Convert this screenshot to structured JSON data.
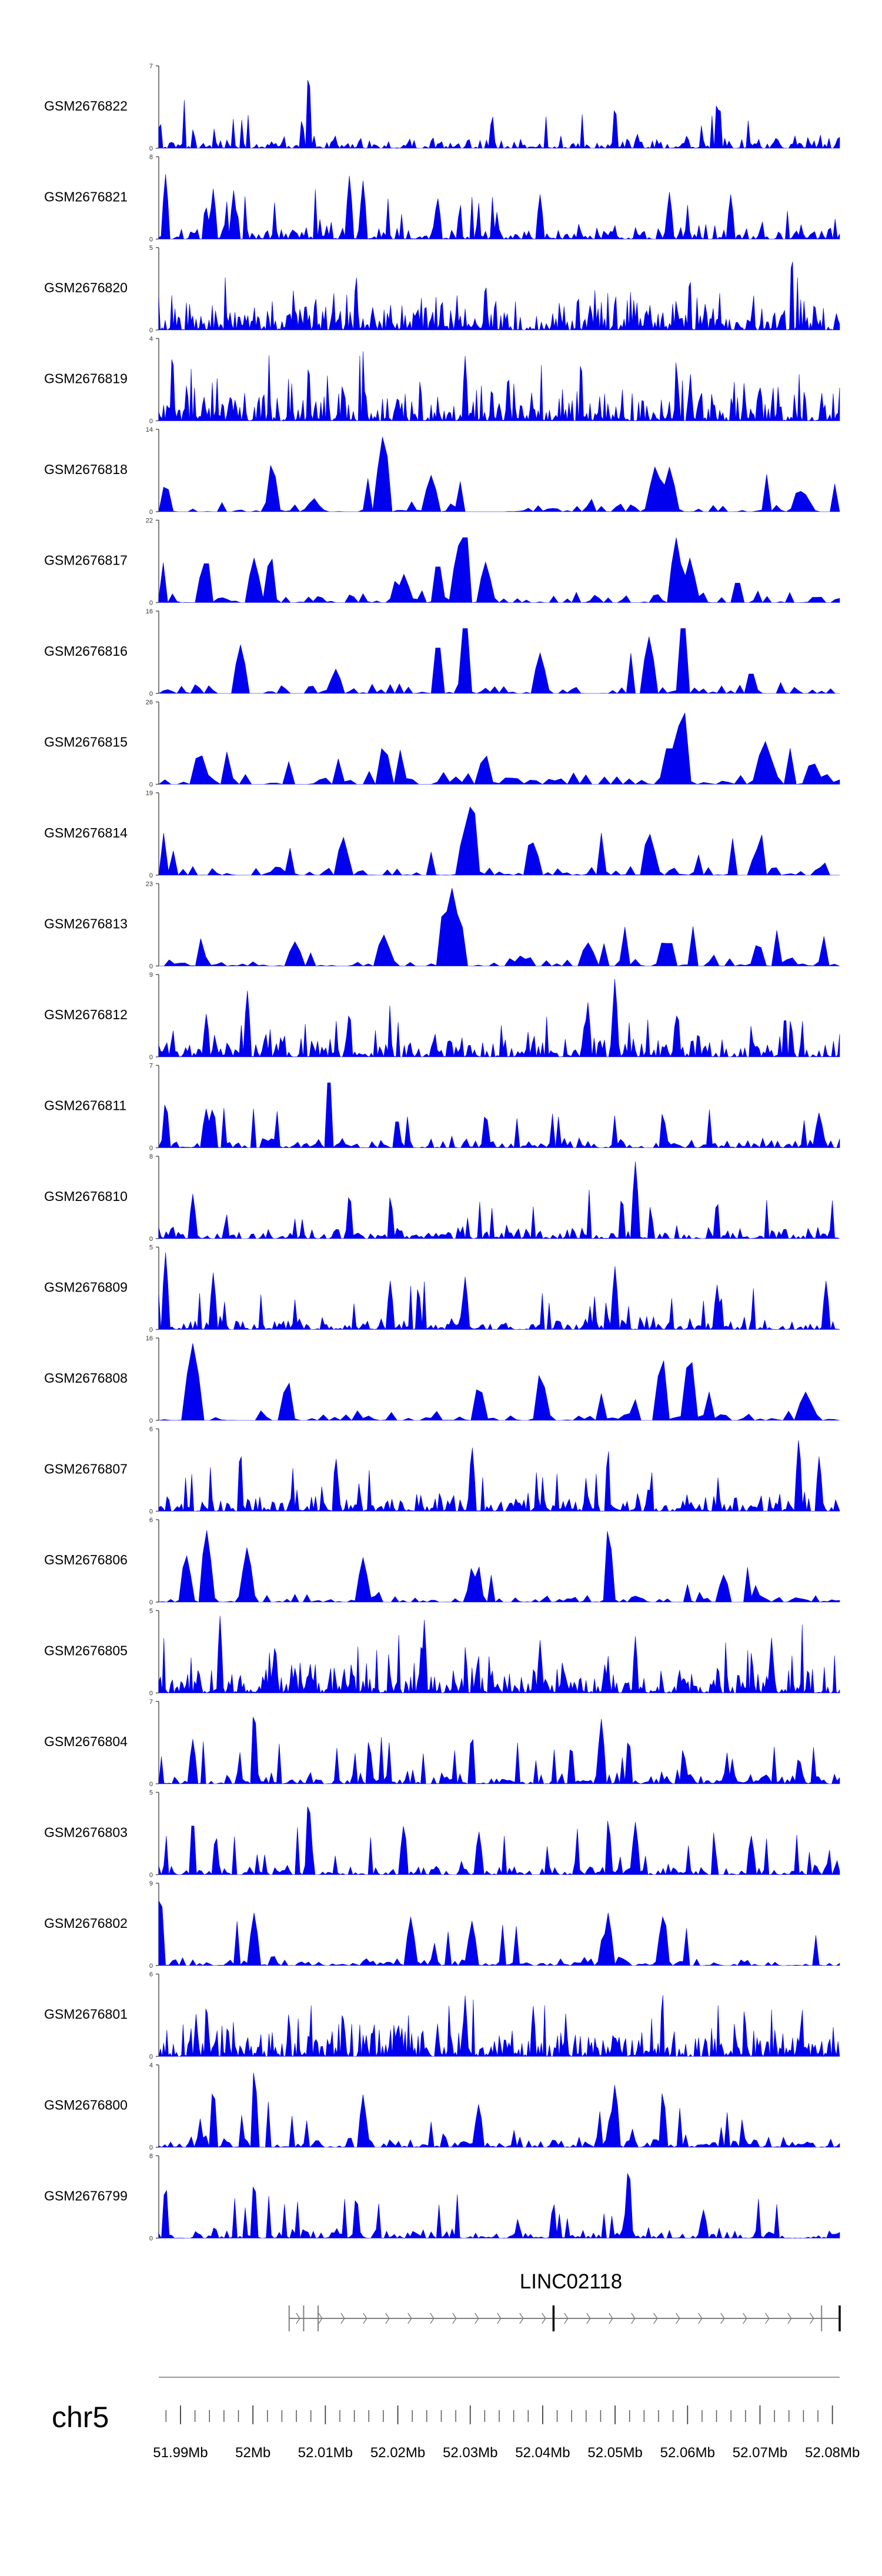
{
  "tracks": [
    {
      "label": "GSM2676822",
      "ymax": "7",
      "ymin": "0",
      "peaks": [
        [
          0.002,
          0.34
        ],
        [
          0.21,
          0.36
        ],
        [
          0.22,
          1.0
        ],
        [
          0.49,
          0.42
        ],
        [
          0.67,
          0.55
        ],
        [
          0.82,
          0.62
        ]
      ],
      "seed": 22,
      "density": 320,
      "base": 0.12,
      "gaps": 0.05
    },
    {
      "label": "GSM2676821",
      "ymax": "8",
      "ymin": "0",
      "peaks": [
        [
          0.01,
          0.8
        ],
        [
          0.08,
          0.62
        ],
        [
          0.11,
          0.6
        ],
        [
          0.28,
          0.78
        ],
        [
          0.3,
          0.72
        ],
        [
          0.41,
          0.5
        ],
        [
          0.56,
          0.55
        ],
        [
          0.75,
          0.58
        ],
        [
          0.84,
          0.55
        ]
      ],
      "seed": 21,
      "density": 300,
      "base": 0.15,
      "gaps": 0.08
    },
    {
      "label": "GSM2676820",
      "ymax": "5",
      "ymin": "0",
      "peaks": [
        [
          0.29,
          0.7
        ],
        [
          0.48,
          0.62
        ],
        [
          0.78,
          0.7
        ],
        [
          0.93,
          1.0
        ]
      ],
      "seed": 20,
      "density": 420,
      "base": 0.3,
      "gaps": 0.02
    },
    {
      "label": "GSM2676819",
      "ymax": "4",
      "ymin": "0",
      "peaks": [
        [
          0.02,
          0.9
        ],
        [
          0.22,
          0.75
        ],
        [
          0.45,
          0.8
        ],
        [
          0.62,
          0.8
        ],
        [
          0.76,
          0.78
        ]
      ],
      "seed": 19,
      "density": 420,
      "base": 0.35,
      "gaps": 0.02
    },
    {
      "label": "GSM2676818",
      "ymax": "14",
      "ymin": "0",
      "peaks": [
        [
          0.01,
          0.36
        ],
        [
          0.33,
          1.0
        ],
        [
          0.4,
          0.45
        ],
        [
          0.73,
          0.6
        ],
        [
          0.75,
          0.55
        ],
        [
          0.94,
          0.3
        ]
      ],
      "seed": 18,
      "density": 140,
      "base": 0.12,
      "gaps": 0.3
    },
    {
      "label": "GSM2676817",
      "ymax": "22",
      "ymin": "0",
      "peaks": [
        [
          0.07,
          0.6
        ],
        [
          0.14,
          0.55
        ],
        [
          0.36,
          0.35
        ],
        [
          0.41,
          0.55
        ],
        [
          0.44,
          0.7
        ],
        [
          0.45,
          1.0
        ],
        [
          0.48,
          0.5
        ],
        [
          0.76,
          0.8
        ],
        [
          0.78,
          0.55
        ],
        [
          0.85,
          0.3
        ]
      ],
      "seed": 17,
      "density": 150,
      "base": 0.1,
      "gaps": 0.3
    },
    {
      "label": "GSM2676816",
      "ymax": "16",
      "ymin": "0",
      "peaks": [
        [
          0.12,
          0.6
        ],
        [
          0.26,
          0.3
        ],
        [
          0.41,
          0.7
        ],
        [
          0.45,
          1.0
        ],
        [
          0.56,
          0.5
        ],
        [
          0.72,
          0.7
        ],
        [
          0.77,
          1.0
        ],
        [
          0.87,
          0.3
        ]
      ],
      "seed": 16,
      "density": 150,
      "base": 0.12,
      "gaps": 0.3
    },
    {
      "label": "GSM2676815",
      "ymax": "26",
      "ymin": "0",
      "peaks": [
        [
          0.06,
          0.42
        ],
        [
          0.33,
          0.5
        ],
        [
          0.48,
          0.38
        ],
        [
          0.75,
          0.55
        ],
        [
          0.77,
          1.0
        ],
        [
          0.89,
          0.55
        ],
        [
          0.96,
          0.3
        ]
      ],
      "seed": 15,
      "density": 110,
      "base": 0.12,
      "gaps": 0.4
    },
    {
      "label": "GSM2676814",
      "ymax": "19",
      "ymin": "0",
      "peaks": [
        [
          0.27,
          0.45
        ],
        [
          0.45,
          0.6
        ],
        [
          0.46,
          1.0
        ],
        [
          0.55,
          0.4
        ],
        [
          0.72,
          0.55
        ],
        [
          0.88,
          0.35
        ]
      ],
      "seed": 14,
      "density": 140,
      "base": 0.12,
      "gaps": 0.25
    },
    {
      "label": "GSM2676813",
      "ymax": "23",
      "ymin": "0",
      "peaks": [
        [
          0.2,
          0.3
        ],
        [
          0.33,
          0.4
        ],
        [
          0.42,
          0.8
        ],
        [
          0.43,
          1.0
        ],
        [
          0.44,
          0.7
        ],
        [
          0.63,
          0.3
        ],
        [
          0.75,
          0.35
        ],
        [
          0.88,
          0.3
        ]
      ],
      "seed": 13,
      "density": 130,
      "base": 0.12,
      "gaps": 0.3
    },
    {
      "label": "GSM2676812",
      "ymax": "9",
      "ymin": "0",
      "peaks": [
        [
          0.07,
          0.55
        ],
        [
          0.13,
          0.85
        ],
        [
          0.28,
          0.6
        ],
        [
          0.63,
          0.7
        ],
        [
          0.67,
          1.0
        ],
        [
          0.76,
          0.55
        ]
      ],
      "seed": 12,
      "density": 330,
      "base": 0.22,
      "gaps": 0.04
    },
    {
      "label": "GSM2676811",
      "ymax": "7",
      "ymin": "0",
      "peaks": [
        [
          0.01,
          0.6
        ],
        [
          0.07,
          0.5
        ],
        [
          0.25,
          1.0
        ],
        [
          0.35,
          0.4
        ],
        [
          0.48,
          0.45
        ],
        [
          0.74,
          0.45
        ],
        [
          0.97,
          0.45
        ]
      ],
      "seed": 11,
      "density": 230,
      "base": 0.12,
      "gaps": 0.12
    },
    {
      "label": "GSM2676810",
      "ymax": "8",
      "ymin": "0",
      "peaks": [
        [
          0.05,
          0.55
        ],
        [
          0.28,
          0.6
        ],
        [
          0.34,
          0.55
        ],
        [
          0.68,
          0.55
        ],
        [
          0.7,
          0.95
        ],
        [
          0.82,
          0.5
        ]
      ],
      "seed": 10,
      "density": 280,
      "base": 0.12,
      "gaps": 0.06
    },
    {
      "label": "GSM2676809",
      "ymax": "5",
      "ymin": "0",
      "peaks": [
        [
          0.01,
          0.95
        ],
        [
          0.08,
          0.7
        ],
        [
          0.34,
          0.6
        ],
        [
          0.45,
          0.65
        ],
        [
          0.67,
          0.78
        ],
        [
          0.82,
          0.55
        ],
        [
          0.98,
          0.6
        ]
      ],
      "seed": 9,
      "density": 300,
      "base": 0.12,
      "gaps": 0.06
    },
    {
      "label": "GSM2676808",
      "ymax": "16",
      "ymin": "0",
      "peaks": [
        [
          0.05,
          0.95
        ],
        [
          0.19,
          0.5
        ],
        [
          0.47,
          0.45
        ],
        [
          0.56,
          0.6
        ],
        [
          0.74,
          0.8
        ],
        [
          0.78,
          0.85
        ],
        [
          0.95,
          0.35
        ]
      ],
      "seed": 8,
      "density": 120,
      "base": 0.1,
      "gaps": 0.35
    },
    {
      "label": "GSM2676807",
      "ymax": "6",
      "ymin": "0",
      "peaks": [
        [
          0.12,
          0.8
        ],
        [
          0.26,
          0.7
        ],
        [
          0.46,
          0.85
        ],
        [
          0.66,
          0.8
        ],
        [
          0.94,
          0.95
        ],
        [
          0.97,
          0.7
        ]
      ],
      "seed": 7,
      "density": 330,
      "base": 0.18,
      "gaps": 0.06
    },
    {
      "label": "GSM2676806",
      "ymax": "6",
      "ymin": "0",
      "peaks": [
        [
          0.04,
          0.62
        ],
        [
          0.07,
          0.92
        ],
        [
          0.13,
          0.7
        ],
        [
          0.3,
          0.55
        ],
        [
          0.46,
          0.45
        ],
        [
          0.66,
          0.95
        ],
        [
          0.83,
          0.35
        ]
      ],
      "seed": 6,
      "density": 170,
      "base": 0.1,
      "gaps": 0.3
    },
    {
      "label": "GSM2676805",
      "ymax": "5",
      "ymin": "0",
      "peaks": [
        [
          0.09,
          0.95
        ],
        [
          0.17,
          0.55
        ],
        [
          0.39,
          0.9
        ],
        [
          0.56,
          0.65
        ],
        [
          0.7,
          0.7
        ],
        [
          0.9,
          0.68
        ]
      ],
      "seed": 5,
      "density": 400,
      "base": 0.28,
      "gaps": 0.03
    },
    {
      "label": "GSM2676804",
      "ymax": "7",
      "ymin": "0",
      "peaks": [
        [
          0.05,
          0.55
        ],
        [
          0.14,
          0.98
        ],
        [
          0.31,
          0.45
        ],
        [
          0.46,
          0.65
        ],
        [
          0.65,
          0.8
        ],
        [
          0.69,
          0.6
        ],
        [
          0.77,
          0.45
        ],
        [
          0.94,
          0.35
        ]
      ],
      "seed": 4,
      "density": 260,
      "base": 0.12,
      "gaps": 0.08
    },
    {
      "label": "GSM2676803",
      "ymax": "5",
      "ymin": "0",
      "peaks": [
        [
          0.05,
          0.75
        ],
        [
          0.22,
          1.0
        ],
        [
          0.36,
          0.65
        ],
        [
          0.47,
          0.55
        ],
        [
          0.66,
          0.72
        ],
        [
          0.7,
          0.65
        ],
        [
          0.87,
          0.5
        ]
      ],
      "seed": 3,
      "density": 270,
      "base": 0.12,
      "gaps": 0.08
    },
    {
      "label": "GSM2676802",
      "ymax": "9",
      "ymin": "0",
      "peaks": [
        [
          0.002,
          0.95
        ],
        [
          0.14,
          0.65
        ],
        [
          0.37,
          0.6
        ],
        [
          0.46,
          0.55
        ],
        [
          0.66,
          0.65
        ],
        [
          0.74,
          0.6
        ]
      ],
      "seed": 2,
      "density": 200,
      "base": 0.08,
      "gaps": 0.1
    },
    {
      "label": "GSM2676801",
      "ymax": "6",
      "ymin": "0",
      "peaks": [
        [
          0.07,
          0.7
        ],
        [
          0.27,
          0.6
        ],
        [
          0.45,
          0.75
        ],
        [
          0.55,
          0.62
        ],
        [
          0.74,
          0.82
        ],
        [
          0.86,
          0.6
        ]
      ],
      "seed": 1,
      "density": 420,
      "base": 0.28,
      "gaps": 0.02
    },
    {
      "label": "GSM2676800",
      "ymax": "4",
      "ymin": "0",
      "peaks": [
        [
          0.08,
          0.78
        ],
        [
          0.14,
          1.0
        ],
        [
          0.3,
          0.65
        ],
        [
          0.47,
          0.55
        ],
        [
          0.67,
          0.8
        ],
        [
          0.74,
          0.72
        ]
      ],
      "seed": 0,
      "density": 230,
      "base": 0.12,
      "gaps": 0.1
    },
    {
      "label": "GSM2676799",
      "ymax": "8",
      "ymin": "0",
      "peaks": [
        [
          0.01,
          0.7
        ],
        [
          0.14,
          0.75
        ],
        [
          0.29,
          0.55
        ],
        [
          0.58,
          0.45
        ],
        [
          0.69,
          0.95
        ],
        [
          0.8,
          0.35
        ]
      ],
      "seed": 99,
      "density": 260,
      "base": 0.1,
      "gaps": 0.1
    }
  ],
  "gene": {
    "name": "LINC02118",
    "start": 52005000,
    "end": 52081000,
    "bars": [
      52005000,
      52007000,
      52009000,
      52041500,
      52078500,
      52081000
    ],
    "strand": "+"
  },
  "chromosome": "chr5",
  "axis": {
    "start": 51987000,
    "end": 52081000,
    "ticks": [
      "51.99Mb",
      "52Mb",
      "52.01Mb",
      "52.02Mb",
      "52.03Mb",
      "52.04Mb",
      "52.05Mb",
      "52.06Mb",
      "52.07Mb",
      "52.08Mb"
    ],
    "tick_values": [
      51990000,
      52000000,
      52010000,
      52020000,
      52030000,
      52040000,
      52050000,
      52060000,
      52070000,
      52080000
    ]
  },
  "colors": {
    "signal": "#0000ee",
    "axis": "#444444",
    "gene": "#808080",
    "text": "#000000"
  },
  "chart_data": {
    "type": "area",
    "title": "",
    "xlabel": "chr5",
    "ylabel": "",
    "xlim": [
      51987000,
      52081000
    ],
    "series": [
      {
        "name": "GSM2676822",
        "ylim": [
          0,
          7
        ]
      },
      {
        "name": "GSM2676821",
        "ylim": [
          0,
          8
        ]
      },
      {
        "name": "GSM2676820",
        "ylim": [
          0,
          5
        ]
      },
      {
        "name": "GSM2676819",
        "ylim": [
          0,
          4
        ]
      },
      {
        "name": "GSM2676818",
        "ylim": [
          0,
          14
        ]
      },
      {
        "name": "GSM2676817",
        "ylim": [
          0,
          22
        ]
      },
      {
        "name": "GSM2676816",
        "ylim": [
          0,
          16
        ]
      },
      {
        "name": "GSM2676815",
        "ylim": [
          0,
          26
        ]
      },
      {
        "name": "GSM2676814",
        "ylim": [
          0,
          19
        ]
      },
      {
        "name": "GSM2676813",
        "ylim": [
          0,
          23
        ]
      },
      {
        "name": "GSM2676812",
        "ylim": [
          0,
          9
        ]
      },
      {
        "name": "GSM2676811",
        "ylim": [
          0,
          7
        ]
      },
      {
        "name": "GSM2676810",
        "ylim": [
          0,
          8
        ]
      },
      {
        "name": "GSM2676809",
        "ylim": [
          0,
          5
        ]
      },
      {
        "name": "GSM2676808",
        "ylim": [
          0,
          16
        ]
      },
      {
        "name": "GSM2676807",
        "ylim": [
          0,
          6
        ]
      },
      {
        "name": "GSM2676806",
        "ylim": [
          0,
          6
        ]
      },
      {
        "name": "GSM2676805",
        "ylim": [
          0,
          5
        ]
      },
      {
        "name": "GSM2676804",
        "ylim": [
          0,
          7
        ]
      },
      {
        "name": "GSM2676803",
        "ylim": [
          0,
          5
        ]
      },
      {
        "name": "GSM2676802",
        "ylim": [
          0,
          9
        ]
      },
      {
        "name": "GSM2676801",
        "ylim": [
          0,
          6
        ]
      },
      {
        "name": "GSM2676800",
        "ylim": [
          0,
          4
        ]
      },
      {
        "name": "GSM2676799",
        "ylim": [
          0,
          8
        ]
      }
    ],
    "annotations": [
      "LINC02118"
    ]
  }
}
